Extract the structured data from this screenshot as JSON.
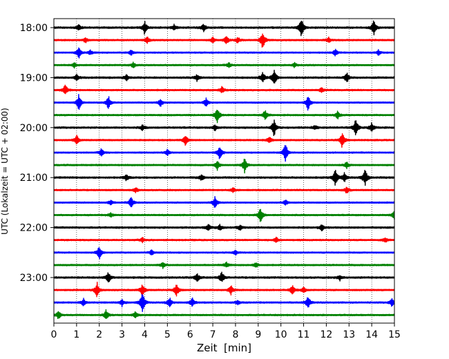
{
  "chart_data": {
    "type": "line",
    "title": "",
    "xlabel": "Zeit  [min]",
    "ylabel": "UTC (Lokalzeit = UTC + 02:00)",
    "xlim": [
      0,
      15
    ],
    "x_ticks": [
      "0",
      "1",
      "2",
      "3",
      "4",
      "5",
      "6",
      "7",
      "8",
      "9",
      "10",
      "11",
      "12",
      "13",
      "14",
      "15"
    ],
    "y_ticks": [
      {
        "label": "18:00",
        "trace": 0
      },
      {
        "label": "19:00",
        "trace": 4
      },
      {
        "label": "20:00",
        "trace": 8
      },
      {
        "label": "21:00",
        "trace": 12
      },
      {
        "label": "22:00",
        "trace": 16
      },
      {
        "label": "23:00",
        "trace": 20
      }
    ],
    "grid": "vertical dotted at each minute",
    "color_cycle": [
      "#000000",
      "#ff0000",
      "#0000ff",
      "#008000"
    ],
    "traces": [
      {
        "start": "18:00",
        "color": "#000000",
        "noise": 0.9,
        "events": [
          [
            1.1,
            0.6
          ],
          [
            4.0,
            1.6
          ],
          [
            5.3,
            0.7
          ],
          [
            6.6,
            0.8
          ],
          [
            10.9,
            2.4
          ],
          [
            14.1,
            1.8
          ]
        ]
      },
      {
        "start": "18:15",
        "color": "#ff0000",
        "noise": 0.8,
        "events": [
          [
            1.4,
            0.6
          ],
          [
            4.1,
            0.8
          ],
          [
            7.0,
            0.6
          ],
          [
            7.6,
            0.9
          ],
          [
            8.1,
            0.7
          ],
          [
            9.2,
            2.3
          ],
          [
            12.1,
            0.6
          ]
        ]
      },
      {
        "start": "18:30",
        "color": "#0000ff",
        "noise": 0.7,
        "events": [
          [
            1.1,
            1.3
          ],
          [
            1.6,
            0.6
          ],
          [
            3.4,
            0.6
          ],
          [
            12.4,
            0.8
          ],
          [
            14.3,
            0.6
          ]
        ]
      },
      {
        "start": "18:45",
        "color": "#008000",
        "noise": 0.8,
        "events": [
          [
            0.9,
            0.6
          ],
          [
            3.5,
            0.6
          ],
          [
            7.7,
            0.6
          ],
          [
            10.6,
            0.5
          ]
        ]
      },
      {
        "start": "19:00",
        "color": "#000000",
        "noise": 0.9,
        "events": [
          [
            1.0,
            0.7
          ],
          [
            3.2,
            0.7
          ],
          [
            6.3,
            0.7
          ],
          [
            9.2,
            1.2
          ],
          [
            9.7,
            2.0
          ],
          [
            12.9,
            1.2
          ]
        ]
      },
      {
        "start": "19:15",
        "color": "#ff0000",
        "noise": 0.8,
        "events": [
          [
            0.5,
            1.3
          ],
          [
            7.4,
            0.7
          ],
          [
            11.8,
            0.6
          ]
        ]
      },
      {
        "start": "19:30",
        "color": "#0000ff",
        "noise": 0.7,
        "events": [
          [
            1.1,
            2.0
          ],
          [
            2.4,
            1.6
          ],
          [
            4.7,
            0.9
          ],
          [
            6.7,
            1.0
          ],
          [
            11.2,
            1.9
          ]
        ]
      },
      {
        "start": "19:45",
        "color": "#008000",
        "noise": 0.8,
        "events": [
          [
            7.2,
            1.8
          ],
          [
            9.3,
            1.2
          ],
          [
            12.5,
            0.9
          ]
        ]
      },
      {
        "start": "20:00",
        "color": "#000000",
        "noise": 0.9,
        "events": [
          [
            3.9,
            0.6
          ],
          [
            7.1,
            0.7
          ],
          [
            9.7,
            2.0
          ],
          [
            11.5,
            0.5
          ],
          [
            13.3,
            2.1
          ],
          [
            14.0,
            1.0
          ]
        ]
      },
      {
        "start": "20:15",
        "color": "#ff0000",
        "noise": 0.8,
        "events": [
          [
            1.0,
            1.1
          ],
          [
            5.8,
            1.3
          ],
          [
            9.5,
            0.7
          ],
          [
            12.7,
            2.0
          ]
        ]
      },
      {
        "start": "20:30",
        "color": "#0000ff",
        "noise": 0.7,
        "events": [
          [
            2.1,
            1.0
          ],
          [
            5.0,
            0.7
          ],
          [
            7.3,
            1.7
          ],
          [
            10.2,
            2.3
          ]
        ]
      },
      {
        "start": "20:45",
        "color": "#008000",
        "noise": 0.8,
        "events": [
          [
            7.2,
            1.1
          ],
          [
            8.4,
            1.7
          ],
          [
            12.9,
            0.7
          ]
        ]
      },
      {
        "start": "21:00",
        "color": "#000000",
        "noise": 0.9,
        "events": [
          [
            3.2,
            0.8
          ],
          [
            6.5,
            0.7
          ],
          [
            12.4,
            2.1
          ],
          [
            12.8,
            1.0
          ],
          [
            13.7,
            2.0
          ]
        ]
      },
      {
        "start": "21:15",
        "color": "#ff0000",
        "noise": 0.8,
        "events": [
          [
            3.6,
            0.6
          ],
          [
            7.9,
            0.6
          ],
          [
            12.9,
            0.8
          ]
        ]
      },
      {
        "start": "21:30",
        "color": "#0000ff",
        "noise": 0.7,
        "events": [
          [
            2.5,
            0.6
          ],
          [
            3.4,
            1.4
          ],
          [
            7.1,
            1.4
          ],
          [
            10.2,
            0.6
          ]
        ]
      },
      {
        "start": "21:45",
        "color": "#008000",
        "noise": 0.8,
        "events": [
          [
            2.5,
            0.5
          ],
          [
            9.1,
            1.8
          ],
          [
            15.0,
            1.3
          ]
        ]
      },
      {
        "start": "22:00",
        "color": "#000000",
        "noise": 0.9,
        "events": [
          [
            6.8,
            0.8
          ],
          [
            7.3,
            0.7
          ],
          [
            8.2,
            0.6
          ],
          [
            11.8,
            0.7
          ]
        ]
      },
      {
        "start": "22:15",
        "color": "#ff0000",
        "noise": 0.8,
        "events": [
          [
            3.9,
            0.6
          ],
          [
            9.8,
            0.6
          ],
          [
            14.6,
            0.6
          ]
        ]
      },
      {
        "start": "22:30",
        "color": "#0000ff",
        "noise": 0.7,
        "events": [
          [
            2.0,
            1.6
          ],
          [
            4.3,
            0.6
          ],
          [
            8.0,
            0.6
          ]
        ]
      },
      {
        "start": "22:45",
        "color": "#008000",
        "noise": 0.8,
        "events": [
          [
            4.8,
            0.6
          ],
          [
            7.6,
            0.6
          ],
          [
            8.9,
            0.6
          ]
        ]
      },
      {
        "start": "23:00",
        "color": "#000000",
        "noise": 0.9,
        "events": [
          [
            2.4,
            1.3
          ],
          [
            6.3,
            1.0
          ],
          [
            7.4,
            1.4
          ],
          [
            12.6,
            0.6
          ]
        ]
      },
      {
        "start": "23:15",
        "color": "#ff0000",
        "noise": 0.8,
        "events": [
          [
            1.9,
            1.8
          ],
          [
            3.9,
            1.5
          ],
          [
            5.4,
            1.6
          ],
          [
            7.8,
            1.0
          ],
          [
            10.5,
            1.1
          ],
          [
            11.0,
            0.7
          ]
        ]
      },
      {
        "start": "23:30",
        "color": "#0000ff",
        "noise": 0.8,
        "events": [
          [
            1.3,
            0.9
          ],
          [
            3.0,
            0.8
          ],
          [
            3.9,
            2.6
          ],
          [
            5.1,
            1.1
          ],
          [
            6.1,
            1.0
          ],
          [
            8.1,
            0.6
          ],
          [
            11.2,
            1.5
          ],
          [
            14.9,
            1.0
          ]
        ]
      },
      {
        "start": "23:45",
        "color": "#008000",
        "noise": 0.8,
        "events": [
          [
            0.2,
            1.0
          ],
          [
            2.3,
            1.2
          ],
          [
            3.6,
            0.8
          ]
        ]
      }
    ]
  }
}
